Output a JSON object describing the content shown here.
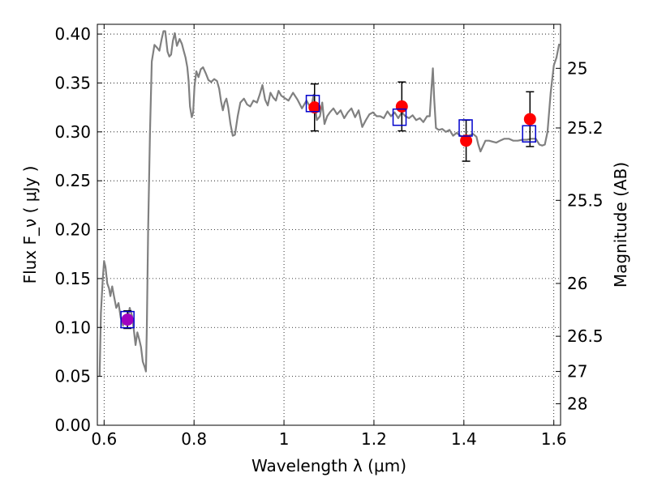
{
  "chart_data": {
    "type": "scatter",
    "title": "",
    "xlabel": "Wavelength  λ (μm)",
    "ylabel": "Flux  F_ν  ( μJy )",
    "y2label": "Magnitude (AB)",
    "xlim": [
      0.585,
      1.615
    ],
    "ylim": [
      0.0,
      0.41
    ],
    "grid": true,
    "x_ticks": [
      0.6,
      0.8,
      1.0,
      1.2,
      1.4,
      1.6
    ],
    "x_tick_labels": [
      "0.6",
      "0.8",
      "1",
      "1.2",
      "1.4",
      "1.6"
    ],
    "y_ticks": [
      0.0,
      0.05,
      0.1,
      0.15,
      0.2,
      0.25,
      0.3,
      0.35,
      0.4
    ],
    "y_tick_labels": [
      "0.00",
      "0.05",
      "0.10",
      "0.15",
      "0.20",
      "0.25",
      "0.30",
      "0.35",
      "0.40"
    ],
    "y2_ticks": [
      {
        "label": "25",
        "flux": 0.365
      },
      {
        "label": "25.2",
        "flux": 0.304
      },
      {
        "label": "25.5",
        "flux": 0.23
      },
      {
        "label": "26",
        "flux": 0.145
      },
      {
        "label": "26.5",
        "flux": 0.091
      },
      {
        "label": "27",
        "flux": 0.055
      },
      {
        "label": "28",
        "flux": 0.022
      }
    ],
    "colors": {
      "model": "#808080",
      "observed": "#ff0000",
      "synthetic": "#0000cc",
      "errorbar": "#000000",
      "blend": "#a000c0"
    },
    "series": [
      {
        "type": "line",
        "points": [
          [
            0.59,
            0.05
          ],
          [
            0.593,
            0.115
          ],
          [
            0.597,
            0.15
          ],
          [
            0.6,
            0.168
          ],
          [
            0.603,
            0.162
          ],
          [
            0.607,
            0.145
          ],
          [
            0.611,
            0.14
          ],
          [
            0.614,
            0.132
          ],
          [
            0.618,
            0.142
          ],
          [
            0.622,
            0.132
          ],
          [
            0.627,
            0.12
          ],
          [
            0.632,
            0.125
          ],
          [
            0.637,
            0.11
          ],
          [
            0.642,
            0.102
          ],
          [
            0.647,
            0.112
          ],
          [
            0.652,
            0.108
          ],
          [
            0.657,
            0.12
          ],
          [
            0.662,
            0.112
          ],
          [
            0.666,
            0.098
          ],
          [
            0.67,
            0.082
          ],
          [
            0.674,
            0.095
          ],
          [
            0.678,
            0.088
          ],
          [
            0.682,
            0.08
          ],
          [
            0.686,
            0.065
          ],
          [
            0.69,
            0.06
          ],
          [
            0.693,
            0.055
          ],
          [
            0.695,
            0.1
          ],
          [
            0.698,
            0.2
          ],
          [
            0.702,
            0.3
          ],
          [
            0.706,
            0.372
          ],
          [
            0.712,
            0.389
          ],
          [
            0.718,
            0.386
          ],
          [
            0.723,
            0.383
          ],
          [
            0.728,
            0.395
          ],
          [
            0.732,
            0.403
          ],
          [
            0.736,
            0.403
          ],
          [
            0.741,
            0.382
          ],
          [
            0.745,
            0.377
          ],
          [
            0.749,
            0.379
          ],
          [
            0.753,
            0.393
          ],
          [
            0.757,
            0.401
          ],
          [
            0.762,
            0.388
          ],
          [
            0.768,
            0.395
          ],
          [
            0.773,
            0.39
          ],
          [
            0.777,
            0.383
          ],
          [
            0.781,
            0.376
          ],
          [
            0.785,
            0.366
          ],
          [
            0.788,
            0.352
          ],
          [
            0.791,
            0.326
          ],
          [
            0.795,
            0.315
          ],
          [
            0.798,
            0.32
          ],
          [
            0.801,
            0.346
          ],
          [
            0.805,
            0.362
          ],
          [
            0.81,
            0.356
          ],
          [
            0.815,
            0.364
          ],
          [
            0.82,
            0.366
          ],
          [
            0.826,
            0.36
          ],
          [
            0.832,
            0.353
          ],
          [
            0.838,
            0.351
          ],
          [
            0.845,
            0.354
          ],
          [
            0.851,
            0.352
          ],
          [
            0.856,
            0.344
          ],
          [
            0.86,
            0.331
          ],
          [
            0.864,
            0.322
          ],
          [
            0.868,
            0.33
          ],
          [
            0.872,
            0.334
          ],
          [
            0.876,
            0.325
          ],
          [
            0.881,
            0.308
          ],
          [
            0.886,
            0.296
          ],
          [
            0.891,
            0.297
          ],
          [
            0.897,
            0.316
          ],
          [
            0.903,
            0.33
          ],
          [
            0.911,
            0.334
          ],
          [
            0.918,
            0.328
          ],
          [
            0.925,
            0.326
          ],
          [
            0.932,
            0.332
          ],
          [
            0.94,
            0.33
          ],
          [
            0.946,
            0.338
          ],
          [
            0.952,
            0.348
          ],
          [
            0.958,
            0.333
          ],
          [
            0.964,
            0.327
          ],
          [
            0.97,
            0.34
          ],
          [
            0.976,
            0.335
          ],
          [
            0.982,
            0.332
          ],
          [
            0.988,
            0.342
          ],
          [
            0.994,
            0.337
          ],
          [
            1.0,
            0.335
          ],
          [
            1.01,
            0.332
          ],
          [
            1.02,
            0.34
          ],
          [
            1.03,
            0.333
          ],
          [
            1.04,
            0.324
          ],
          [
            1.05,
            0.332
          ],
          [
            1.06,
            0.324
          ],
          [
            1.066,
            0.338
          ],
          [
            1.073,
            0.312
          ],
          [
            1.08,
            0.316
          ],
          [
            1.085,
            0.33
          ],
          [
            1.09,
            0.308
          ],
          [
            1.096,
            0.316
          ],
          [
            1.102,
            0.32
          ],
          [
            1.11,
            0.324
          ],
          [
            1.118,
            0.318
          ],
          [
            1.126,
            0.322
          ],
          [
            1.134,
            0.314
          ],
          [
            1.142,
            0.32
          ],
          [
            1.15,
            0.324
          ],
          [
            1.158,
            0.315
          ],
          [
            1.166,
            0.322
          ],
          [
            1.174,
            0.305
          ],
          [
            1.182,
            0.312
          ],
          [
            1.19,
            0.318
          ],
          [
            1.198,
            0.32
          ],
          [
            1.206,
            0.316
          ],
          [
            1.214,
            0.316
          ],
          [
            1.222,
            0.314
          ],
          [
            1.23,
            0.321
          ],
          [
            1.238,
            0.316
          ],
          [
            1.246,
            0.32
          ],
          [
            1.254,
            0.314
          ],
          [
            1.262,
            0.32
          ],
          [
            1.27,
            0.316
          ],
          [
            1.278,
            0.314
          ],
          [
            1.286,
            0.317
          ],
          [
            1.294,
            0.312
          ],
          [
            1.302,
            0.314
          ],
          [
            1.31,
            0.31
          ],
          [
            1.318,
            0.316
          ],
          [
            1.324,
            0.316
          ],
          [
            1.328,
            0.345
          ],
          [
            1.331,
            0.365
          ],
          [
            1.334,
            0.334
          ],
          [
            1.338,
            0.304
          ],
          [
            1.344,
            0.302
          ],
          [
            1.352,
            0.303
          ],
          [
            1.36,
            0.3
          ],
          [
            1.368,
            0.302
          ],
          [
            1.376,
            0.296
          ],
          [
            1.384,
            0.299
          ],
          [
            1.392,
            0.296
          ],
          [
            1.4,
            0.294
          ],
          [
            1.41,
            0.296
          ],
          [
            1.42,
            0.298
          ],
          [
            1.428,
            0.295
          ],
          [
            1.432,
            0.287
          ],
          [
            1.437,
            0.28
          ],
          [
            1.442,
            0.285
          ],
          [
            1.448,
            0.291
          ],
          [
            1.456,
            0.291
          ],
          [
            1.464,
            0.29
          ],
          [
            1.472,
            0.289
          ],
          [
            1.48,
            0.291
          ],
          [
            1.49,
            0.293
          ],
          [
            1.5,
            0.293
          ],
          [
            1.51,
            0.291
          ],
          [
            1.52,
            0.291
          ],
          [
            1.53,
            0.292
          ],
          [
            1.54,
            0.292
          ],
          [
            1.55,
            0.293
          ],
          [
            1.56,
            0.293
          ],
          [
            1.568,
            0.287
          ],
          [
            1.574,
            0.286
          ],
          [
            1.58,
            0.287
          ],
          [
            1.586,
            0.3
          ],
          [
            1.593,
            0.34
          ],
          [
            1.6,
            0.368
          ],
          [
            1.606,
            0.376
          ],
          [
            1.612,
            0.39
          ]
        ]
      },
      {
        "type": "points",
        "values": [
          {
            "x": 0.652,
            "y": 0.108,
            "err": 0.009
          },
          {
            "x": 1.068,
            "y": 0.325,
            "err": 0.024
          },
          {
            "x": 1.262,
            "y": 0.326,
            "err": 0.025
          },
          {
            "x": 1.405,
            "y": 0.291,
            "err": 0.021
          },
          {
            "x": 1.547,
            "y": 0.313,
            "err": 0.028
          }
        ]
      },
      {
        "type": "squares",
        "values": [
          {
            "x": 0.652,
            "y": 0.108
          },
          {
            "x": 1.064,
            "y": 0.329
          },
          {
            "x": 1.257,
            "y": 0.315
          },
          {
            "x": 1.404,
            "y": 0.304
          },
          {
            "x": 1.545,
            "y": 0.298
          }
        ]
      }
    ]
  }
}
